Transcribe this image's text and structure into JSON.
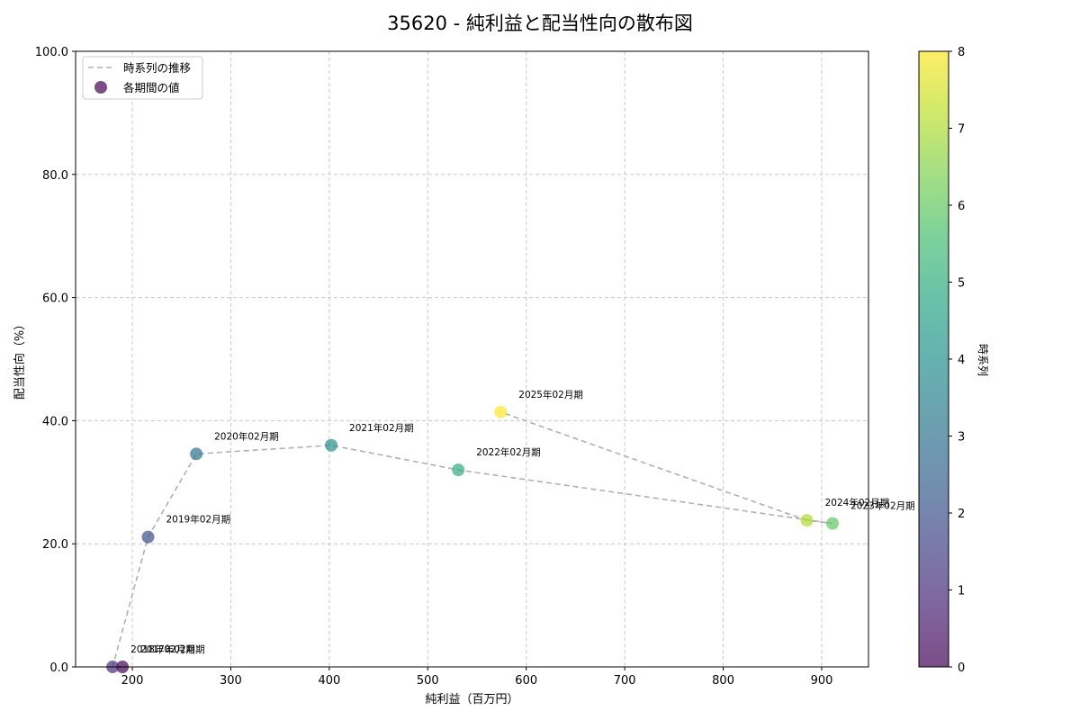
{
  "chart_data": {
    "type": "scatter",
    "title": "35620 - 純利益と配当性向の散布図",
    "xlabel": "純利益（百万円）",
    "ylabel": "配当性向（%）",
    "xlim": [
      142,
      948
    ],
    "ylim": [
      0,
      100
    ],
    "xticks": [
      200,
      300,
      400,
      500,
      600,
      700,
      800,
      900
    ],
    "yticks": [
      "0.0",
      "20.0",
      "40.0",
      "60.0",
      "80.0",
      "100.0"
    ],
    "grid": true,
    "legend": {
      "position": "upper left",
      "entries": [
        "時系列の推移",
        "各期間の値"
      ]
    },
    "colorbar": {
      "label": "時系列",
      "ticks": [
        0,
        1,
        2,
        3,
        4,
        5,
        6,
        7,
        8
      ],
      "colormap": "viridis"
    },
    "points": [
      {
        "label": "2017年02月期",
        "x": 190,
        "y": 0.0,
        "t": 0
      },
      {
        "label": "2018年02月期",
        "x": 180,
        "y": 0.0,
        "t": 1
      },
      {
        "label": "2019年02月期",
        "x": 216,
        "y": 21.1,
        "t": 2
      },
      {
        "label": "2020年02月期",
        "x": 265,
        "y": 34.6,
        "t": 3
      },
      {
        "label": "2021年02月期",
        "x": 402,
        "y": 36.0,
        "t": 4
      },
      {
        "label": "2022年02月期",
        "x": 531,
        "y": 32.0,
        "t": 5
      },
      {
        "label": "2023年02月期",
        "x": 911,
        "y": 23.3,
        "t": 6
      },
      {
        "label": "2024年02月期",
        "x": 885,
        "y": 23.8,
        "t": 7
      },
      {
        "label": "2025年02月期",
        "x": 574,
        "y": 41.4,
        "t": 8
      }
    ]
  }
}
